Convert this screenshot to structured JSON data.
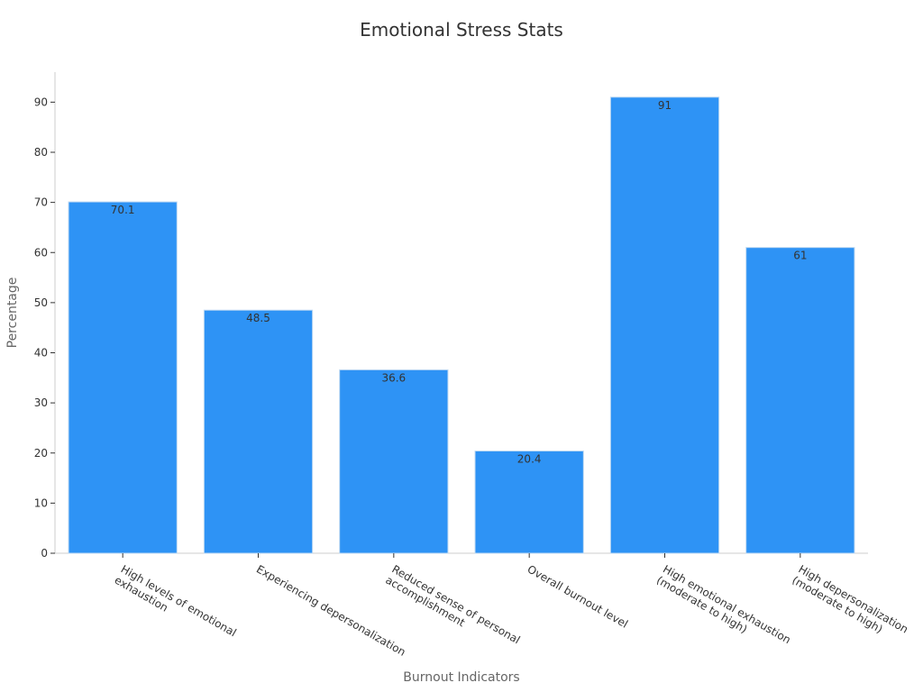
{
  "chart_data": {
    "type": "bar",
    "title": "Emotional Stress Stats",
    "xlabel": "Burnout Indicators",
    "ylabel": "Percentage",
    "categories": [
      [
        "High levels of emotional",
        "exhaustion"
      ],
      [
        "Experiencing depersonalization"
      ],
      [
        "Reduced sense of personal",
        "accomplishment"
      ],
      [
        "Overall burnout level"
      ],
      [
        "High emotional exhaustion",
        "(moderate to high)"
      ],
      [
        "High depersonalization",
        "(moderate to high)"
      ]
    ],
    "values": [
      70.1,
      48.5,
      36.6,
      20.4,
      91,
      61
    ],
    "value_labels": [
      "70.1",
      "48.5",
      "36.6",
      "20.4",
      "91",
      "61"
    ],
    "yticks": [
      0,
      10,
      20,
      30,
      40,
      50,
      60,
      70,
      80,
      90
    ],
    "ylim": [
      0,
      96
    ],
    "grid": false,
    "legend": "none",
    "colors": {
      "bar": "#2E93F5",
      "bar_edge": "#BFD9F2",
      "axis": "#CCCCCC",
      "text": "#333333"
    }
  }
}
